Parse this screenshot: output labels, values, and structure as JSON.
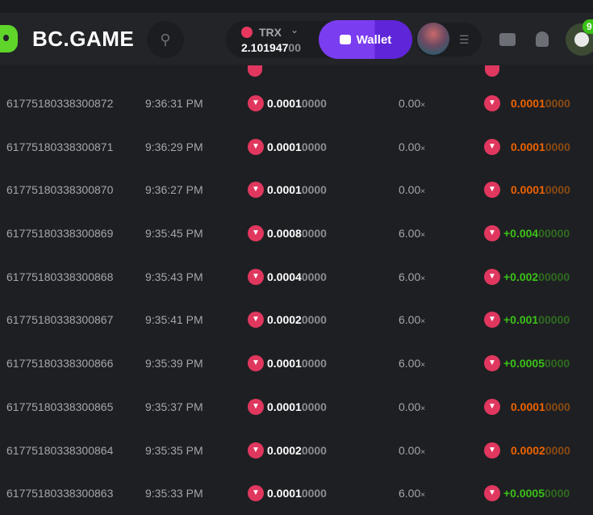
{
  "header": {
    "brand": "BC.GAME",
    "currency": "TRX",
    "balance_main": "2.101947",
    "balance_dim": "00",
    "wallet_label": "Wallet",
    "chat_badge": "9"
  },
  "rows": [
    {
      "id": "61775180338300872",
      "time": "9:36:31 PM",
      "bet_main": "0.0001",
      "bet_dim": "0000",
      "multiplier": "0.00",
      "payout_main": "0.0001",
      "payout_dim": "0000",
      "result": "loss"
    },
    {
      "id": "61775180338300871",
      "time": "9:36:29 PM",
      "bet_main": "0.0001",
      "bet_dim": "0000",
      "multiplier": "0.00",
      "payout_main": "0.0001",
      "payout_dim": "0000",
      "result": "loss"
    },
    {
      "id": "61775180338300870",
      "time": "9:36:27 PM",
      "bet_main": "0.0001",
      "bet_dim": "0000",
      "multiplier": "0.00",
      "payout_main": "0.0001",
      "payout_dim": "0000",
      "result": "loss"
    },
    {
      "id": "61775180338300869",
      "time": "9:35:45 PM",
      "bet_main": "0.0008",
      "bet_dim": "0000",
      "multiplier": "6.00",
      "payout_main": "+0.004",
      "payout_dim": "00000",
      "result": "win"
    },
    {
      "id": "61775180338300868",
      "time": "9:35:43 PM",
      "bet_main": "0.0004",
      "bet_dim": "0000",
      "multiplier": "6.00",
      "payout_main": "+0.002",
      "payout_dim": "00000",
      "result": "win"
    },
    {
      "id": "61775180338300867",
      "time": "9:35:41 PM",
      "bet_main": "0.0002",
      "bet_dim": "0000",
      "multiplier": "6.00",
      "payout_main": "+0.001",
      "payout_dim": "00000",
      "result": "win"
    },
    {
      "id": "61775180338300866",
      "time": "9:35:39 PM",
      "bet_main": "0.0001",
      "bet_dim": "0000",
      "multiplier": "6.00",
      "payout_main": "+0.0005",
      "payout_dim": "0000",
      "result": "win"
    },
    {
      "id": "61775180338300865",
      "time": "9:35:37 PM",
      "bet_main": "0.0001",
      "bet_dim": "0000",
      "multiplier": "0.00",
      "payout_main": "0.0001",
      "payout_dim": "0000",
      "result": "loss"
    },
    {
      "id": "61775180338300864",
      "time": "9:35:35 PM",
      "bet_main": "0.0002",
      "bet_dim": "0000",
      "multiplier": "0.00",
      "payout_main": "0.0002",
      "payout_dim": "0000",
      "result": "loss"
    },
    {
      "id": "61775180338300863",
      "time": "9:35:33 PM",
      "bet_main": "0.0001",
      "bet_dim": "0000",
      "multiplier": "6.00",
      "payout_main": "+0.0005",
      "payout_dim": "0000",
      "result": "win"
    }
  ],
  "multiplier_suffix": "×",
  "colors": {
    "win": "#3bc117",
    "loss": "#ed6300",
    "accent": "#7b3df0",
    "trx": "#e0375f"
  },
  "icons": {
    "coin": "trx-icon"
  }
}
